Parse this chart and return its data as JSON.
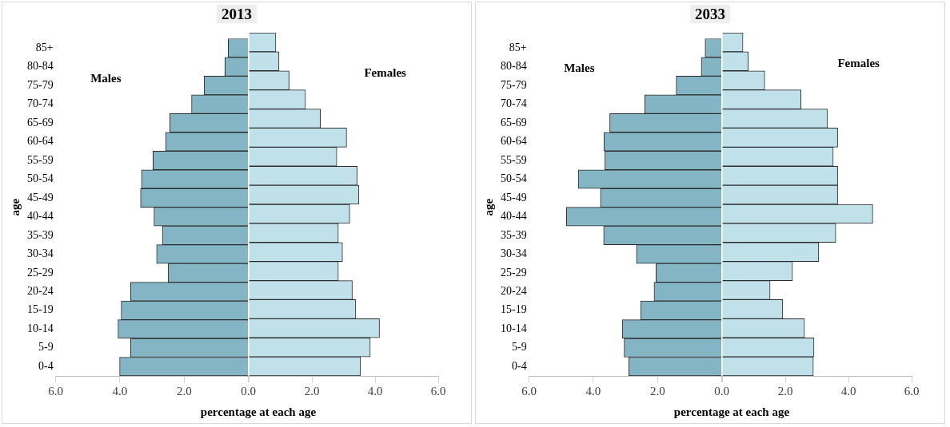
{
  "chart_data": [
    {
      "type": "bar",
      "orientation": "horizontal",
      "title": "2013",
      "xlabel": "percentage at each age",
      "ylabel": "age",
      "legend": false,
      "grid": false,
      "categories": [
        "85+",
        "80-84",
        "75-79",
        "70-74",
        "65-69",
        "60-64",
        "55-59",
        "50-54",
        "45-49",
        "40-44",
        "35-39",
        "30-34",
        "25-29",
        "20-24",
        "15-19",
        "10-14",
        "5-9",
        "0-4"
      ],
      "series": [
        {
          "name": "Males",
          "color": "#84b5c4",
          "values": [
            0.63,
            0.73,
            1.38,
            1.77,
            2.45,
            2.58,
            2.97,
            3.33,
            3.36,
            2.94,
            2.68,
            2.86,
            2.5,
            3.67,
            3.96,
            4.06,
            3.67,
            4.01
          ]
        }
      ],
      "xlim": [
        6,
        0
      ],
      "xticks": [
        {
          "value": 6,
          "label": "6.0"
        },
        {
          "value": 4,
          "label": "4.0"
        },
        {
          "value": 2,
          "label": "2.0"
        },
        {
          "value": 0,
          "label": "0.0"
        }
      ]
    },
    {
      "type": "bar",
      "orientation": "horizontal",
      "legend": false,
      "grid": false,
      "tick_labels": "x",
      "categories": [
        null,
        null,
        null,
        null,
        null,
        null,
        null,
        null,
        null,
        null,
        null,
        null,
        null,
        null,
        null,
        null,
        null,
        null
      ],
      "series": [
        {
          "name": "Females",
          "color": "#c0e0ea",
          "values": [
            0.86,
            0.96,
            1.28,
            1.8,
            2.27,
            3.1,
            2.79,
            3.44,
            3.49,
            3.2,
            2.84,
            2.97,
            2.84,
            3.28,
            3.39,
            4.14,
            3.85,
            3.54
          ]
        }
      ],
      "xlim": [
        0,
        6
      ],
      "xticks": [
        {
          "value": 0,
          "label": null
        },
        {
          "value": 2,
          "label": "2.0"
        },
        {
          "value": 4,
          "label": "4.0"
        },
        {
          "value": 6,
          "label": "6.0"
        }
      ]
    },
    {
      "type": "bar",
      "orientation": "horizontal",
      "title": "2033",
      "xlabel": "percentage at each age",
      "ylabel": "age",
      "legend": false,
      "grid": false,
      "categories": [
        "85+",
        "80-84",
        "75-79",
        "70-74",
        "65-69",
        "60-64",
        "55-59",
        "50-54",
        "45-49",
        "40-44",
        "35-39",
        "30-34",
        "25-29",
        "20-24",
        "15-19",
        "10-14",
        "5-9",
        "0-4"
      ],
      "series": [
        {
          "name": "Males",
          "color": "#84b5c4",
          "values": [
            0.52,
            0.64,
            1.42,
            2.4,
            3.49,
            3.67,
            3.64,
            4.47,
            3.78,
            4.84,
            3.68,
            2.66,
            2.05,
            2.11,
            2.53,
            3.1,
            3.04,
            2.9
          ]
        }
      ],
      "xlim": [
        6,
        0
      ],
      "xticks": [
        {
          "value": 6,
          "label": "6.0"
        },
        {
          "value": 4,
          "label": "4.0"
        },
        {
          "value": 2,
          "label": "2.0"
        },
        {
          "value": 0,
          "label": "0.0"
        }
      ]
    },
    {
      "type": "bar",
      "orientation": "horizontal",
      "legend": false,
      "grid": false,
      "tick_labels": "x",
      "categories": [
        null,
        null,
        null,
        null,
        null,
        null,
        null,
        null,
        null,
        null,
        null,
        null,
        null,
        null,
        null,
        null,
        null,
        null
      ],
      "series": [
        {
          "name": "Females",
          "color": "#c0e0ea",
          "values": [
            0.66,
            0.83,
            1.35,
            2.5,
            3.34,
            3.66,
            3.52,
            3.66,
            3.66,
            4.77,
            3.6,
            3.06,
            2.23,
            1.52,
            1.92,
            2.61,
            2.91,
            2.89
          ]
        }
      ],
      "xlim": [
        0,
        6
      ],
      "xticks": [
        {
          "value": 0,
          "label": null
        },
        {
          "value": 2,
          "label": "2.0"
        },
        {
          "value": 4,
          "label": "4.0"
        },
        {
          "value": 6,
          "label": "6.0"
        }
      ]
    }
  ]
}
